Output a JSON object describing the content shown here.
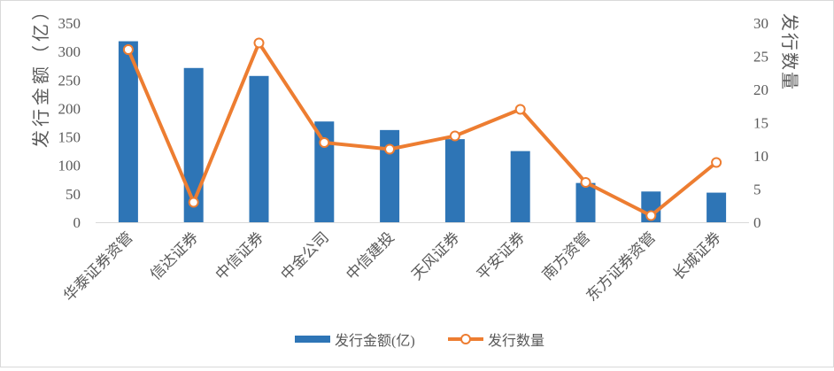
{
  "chart_data": {
    "type": "bar+line",
    "categories": [
      "华泰证券资管",
      "信达证券",
      "中信证券",
      "中金公司",
      "中信建投",
      "天风证券",
      "平安证券",
      "南方资管",
      "东方证券资管",
      "长城证券"
    ],
    "series": [
      {
        "name": "发行金额(亿)",
        "type": "bar",
        "axis": "left",
        "color": "#2E75B6",
        "values": [
          318,
          271,
          257,
          177,
          162,
          146,
          125,
          69,
          54,
          52
        ]
      },
      {
        "name": "发行数量",
        "type": "line",
        "axis": "right",
        "color": "#ED7D31",
        "values": [
          26,
          3,
          27,
          12,
          11,
          13,
          17,
          6,
          1,
          9
        ]
      }
    ],
    "ylabel": "发行金额（亿）",
    "y2label": "发行数量",
    "ylim": [
      0,
      350
    ],
    "y2lim": [
      0,
      30
    ],
    "yticks": [
      0,
      50,
      100,
      150,
      200,
      250,
      300,
      350
    ],
    "y2ticks": [
      0,
      5,
      10,
      15,
      20,
      25,
      30
    ],
    "grid": false,
    "legend_placement": "bottom"
  }
}
